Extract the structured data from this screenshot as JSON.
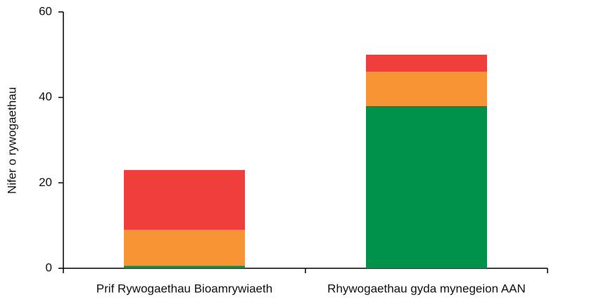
{
  "chart_data": {
    "type": "stacked_bar",
    "y_label": "Nifer o rywogaethau",
    "categories": [
      "Prif Rywogaethau Bioamrywiaeth",
      "Rhywogaethau gyda mynegeion AAN"
    ],
    "series": [
      {
        "color": "#00924a",
        "values": [
          0.6,
          38
        ]
      },
      {
        "color": "#f79433",
        "values": [
          8.4,
          8
        ]
      },
      {
        "color": "#ef3e3b",
        "values": [
          14,
          4
        ]
      }
    ],
    "ylim": [
      0,
      60
    ],
    "yticks": [
      0,
      20,
      40,
      60
    ]
  }
}
